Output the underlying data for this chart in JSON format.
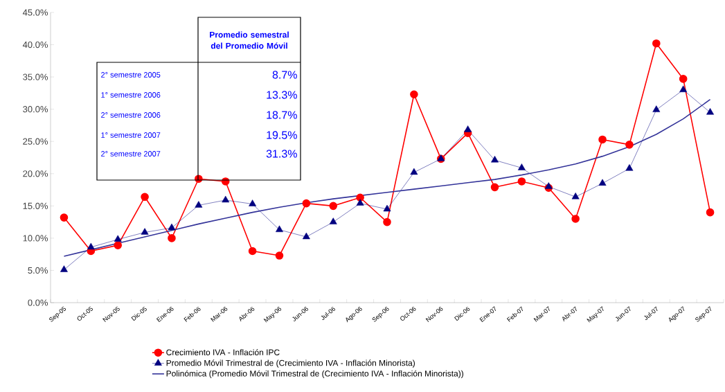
{
  "chart_data": {
    "type": "line",
    "categories": [
      "Sep-05",
      "Oct-05",
      "Nov-05",
      "Dic-05",
      "Ene-06",
      "Feb-06",
      "Mar-06",
      "Abr-06",
      "May-06",
      "Jun-06",
      "Jul-06",
      "Ago-06",
      "Sep-06",
      "Oct-06",
      "Nov-06",
      "Dic-06",
      "Ene-07",
      "Feb-07",
      "Mar-07",
      "Abr-07",
      "May-07",
      "Jun-07",
      "Jul-07",
      "Ago-07",
      "Sep-07"
    ],
    "series": [
      {
        "name": "Crecimiento IVA - Inflación IPC",
        "color": "#ff0000",
        "marker": "circle",
        "values": [
          13.2,
          8.0,
          8.9,
          16.4,
          10.0,
          19.2,
          18.8,
          8.0,
          7.3,
          15.4,
          15.0,
          16.3,
          12.5,
          32.3,
          22.3,
          26.3,
          17.9,
          18.8,
          17.8,
          13.0,
          25.3,
          24.5,
          40.2,
          34.7,
          14.0
        ]
      },
      {
        "name": "Promedio Móvil Trimestral de (Crecimiento IVA - Inflación Minorista)",
        "color": "#000080",
        "marker": "triangle",
        "values": [
          5.1,
          8.6,
          9.8,
          10.9,
          11.6,
          15.1,
          15.9,
          15.3,
          11.3,
          10.2,
          12.5,
          15.4,
          14.5,
          20.2,
          22.3,
          26.8,
          22.1,
          20.9,
          18.0,
          16.4,
          18.5,
          20.8,
          29.9,
          33.0,
          29.5
        ]
      },
      {
        "name": "Polinómica (Promedio Móvil Trimestral de (Crecimiento IVA - Inflación Minorista))",
        "color": "#333399",
        "marker": "none",
        "values": [
          7.2,
          8.2,
          9.2,
          10.2,
          11.2,
          12.2,
          13.1,
          14.0,
          14.8,
          15.5,
          16.1,
          16.6,
          17.1,
          17.6,
          18.1,
          18.6,
          19.1,
          19.8,
          20.6,
          21.5,
          22.7,
          24.2,
          26.1,
          28.5,
          31.5
        ]
      }
    ],
    "ylim": [
      0,
      45
    ],
    "yticks": [
      {
        "value": 0,
        "label": "0.0%"
      },
      {
        "value": 5,
        "label": "5.0%"
      },
      {
        "value": 10,
        "label": "10.0%"
      },
      {
        "value": 15,
        "label": "15.0%"
      },
      {
        "value": 20,
        "label": "20.0%"
      },
      {
        "value": 25,
        "label": "25.0%"
      },
      {
        "value": 30,
        "label": "30.0%"
      },
      {
        "value": 35,
        "label": "35.0%"
      },
      {
        "value": 40,
        "label": "40.0%"
      },
      {
        "value": 45,
        "label": "45.0%"
      }
    ],
    "grid": false,
    "legend": "bottom",
    "annotations": [
      "Promedio semestral del Promedio Móvil",
      "2° semestre 2005",
      "8.7%",
      "1°  semestre 2006",
      "13.3%",
      "2° semestre 2006",
      "18.7%",
      "1° semestre 2007",
      "19.5%",
      "2° semestre 2007",
      "31.3%"
    ]
  }
}
